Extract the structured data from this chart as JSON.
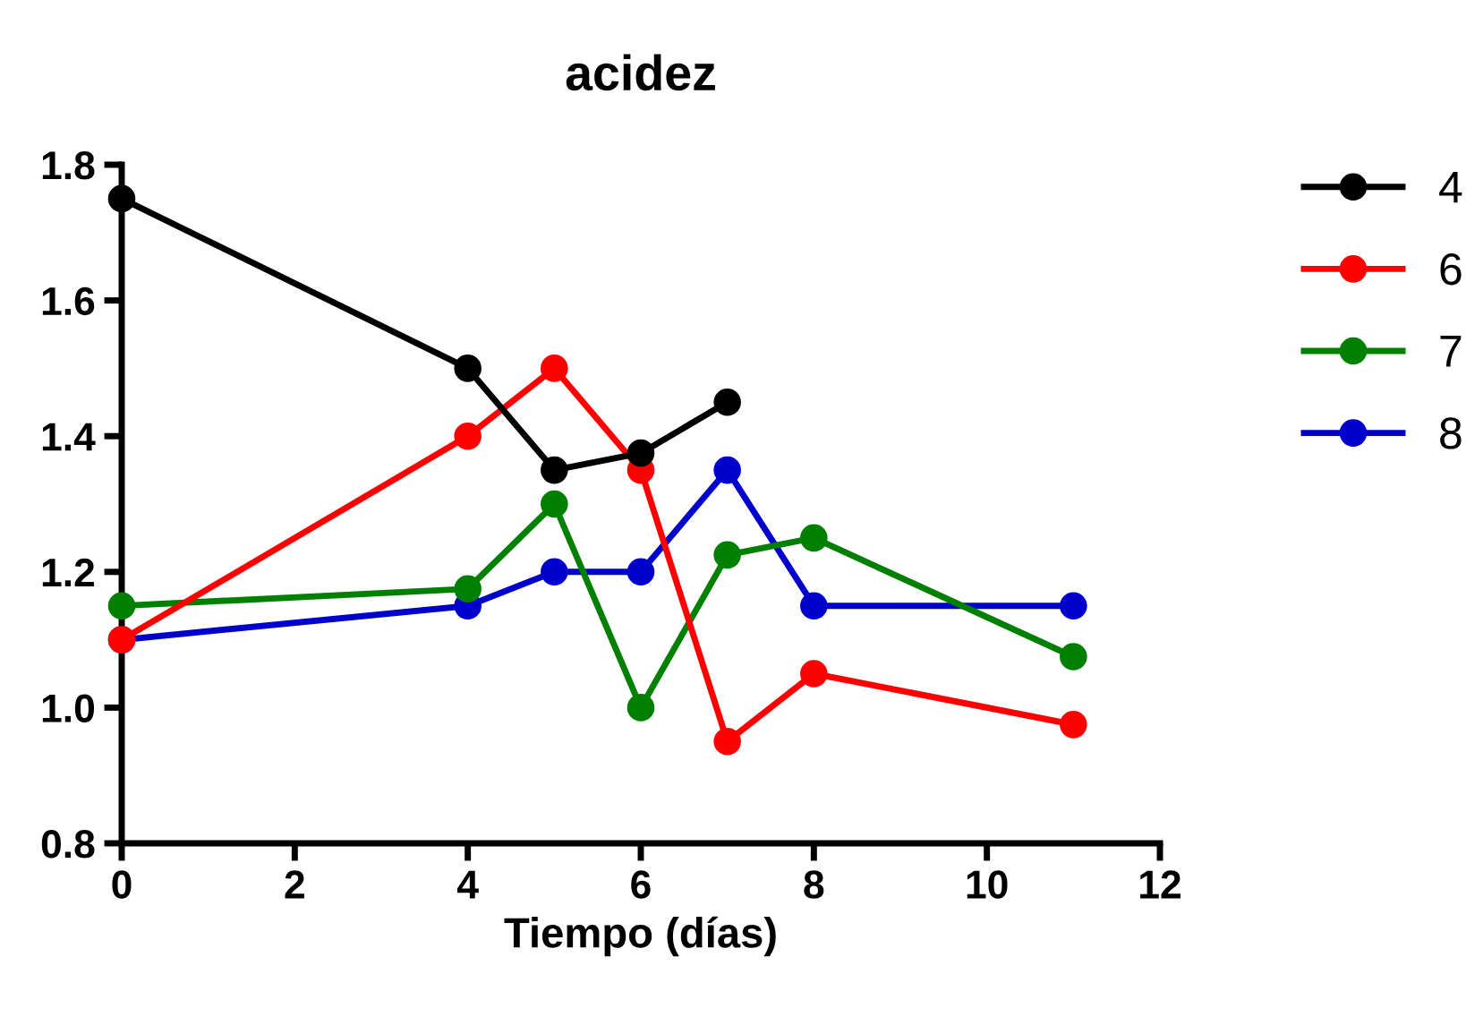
{
  "chart_data": {
    "type": "line",
    "title": "acidez",
    "xlabel": "Tiempo (días)",
    "xlim": [
      0,
      12
    ],
    "xticks": [
      0,
      2,
      4,
      6,
      8,
      10,
      12
    ],
    "ylim": [
      0.8,
      1.8
    ],
    "yticks": [
      {
        "value": 0.8,
        "label": "0.8"
      },
      {
        "value": 1.0,
        "label": "1.0"
      },
      {
        "value": 1.2,
        "label": "1.2"
      },
      {
        "value": 1.4,
        "label": "1.4"
      },
      {
        "value": 1.6,
        "label": "1.6"
      },
      {
        "value": 1.8,
        "label": "1.8"
      }
    ],
    "grid": false,
    "legend": "right",
    "marker": "circle",
    "line_style": "solid",
    "series": [
      {
        "name": "4",
        "color": "#000000",
        "x": [
          0,
          4,
          5,
          6,
          7
        ],
        "values": [
          1.75,
          1.5,
          1.35,
          1.375,
          1.45
        ]
      },
      {
        "name": "6",
        "color": "#ff0000",
        "x": [
          0,
          4,
          5,
          6,
          7,
          8,
          11
        ],
        "values": [
          1.1,
          1.4,
          1.5,
          1.35,
          0.95,
          1.05,
          0.975
        ]
      },
      {
        "name": "7",
        "color": "#008000",
        "x": [
          0,
          4,
          5,
          6,
          7,
          8,
          11
        ],
        "values": [
          1.15,
          1.175,
          1.3,
          1.0,
          1.225,
          1.25,
          1.075
        ]
      },
      {
        "name": "8",
        "color": "#0000cc",
        "x": [
          0,
          4,
          5,
          6,
          7,
          8,
          11
        ],
        "values": [
          1.1,
          1.15,
          1.2,
          1.2,
          1.35,
          1.15,
          1.15
        ]
      }
    ]
  }
}
